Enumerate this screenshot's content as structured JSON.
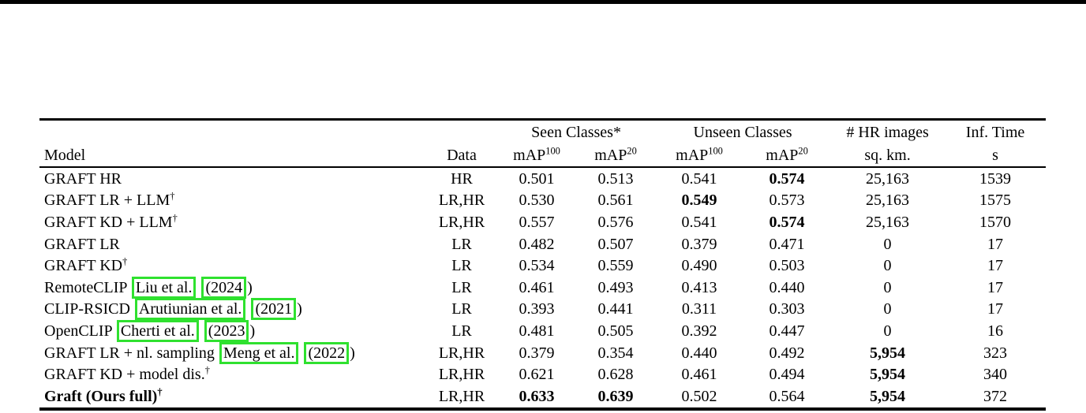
{
  "page": {
    "colors": {
      "citation_box_green": "#2fe12f",
      "rule_black": "#000000",
      "background": "#ffffff"
    }
  },
  "table": {
    "header": {
      "model": "Model",
      "data": "Data",
      "seen_group": "Seen Classes*",
      "unseen_group": "Unseen Classes",
      "hr_images_line1": "# HR images",
      "hr_images_line2": "sq. km.",
      "inf_time_line1": "Inf. Time",
      "inf_time_line2": "s",
      "map_base": "mAP",
      "map_sup_100": "100",
      "map_sup_20": "20"
    },
    "rows": [
      {
        "model_parts": [
          {
            "t": "text",
            "v": "GRAFT HR"
          }
        ],
        "bold_model": false,
        "cells": [
          "HR",
          "0.501",
          "0.513",
          "0.541",
          "0.574",
          "25,163",
          "1539"
        ],
        "bold_cells": [
          4
        ]
      },
      {
        "model_parts": [
          {
            "t": "text",
            "v": "GRAFT LR + LLM"
          },
          {
            "t": "sup",
            "v": "†"
          }
        ],
        "bold_model": false,
        "cells": [
          "LR,HR",
          "0.530",
          "0.561",
          "0.549",
          "0.573",
          "25,163",
          "1575"
        ],
        "bold_cells": [
          3
        ]
      },
      {
        "model_parts": [
          {
            "t": "text",
            "v": "GRAFT KD + LLM"
          },
          {
            "t": "sup",
            "v": "†"
          }
        ],
        "bold_model": false,
        "cells": [
          "LR,HR",
          "0.557",
          "0.576",
          "0.541",
          "0.574",
          "25,163",
          "1570"
        ],
        "bold_cells": [
          4
        ]
      },
      {
        "model_parts": [
          {
            "t": "text",
            "v": "GRAFT LR"
          }
        ],
        "bold_model": false,
        "cells": [
          "LR",
          "0.482",
          "0.507",
          "0.379",
          "0.471",
          "0",
          "17"
        ],
        "bold_cells": []
      },
      {
        "model_parts": [
          {
            "t": "text",
            "v": "GRAFT KD"
          },
          {
            "t": "sup",
            "v": "†"
          }
        ],
        "bold_model": false,
        "cells": [
          "LR",
          "0.534",
          "0.559",
          "0.490",
          "0.503",
          "0",
          "17"
        ],
        "bold_cells": []
      },
      {
        "model_parts": [
          {
            "t": "text",
            "v": "RemoteCLIP "
          },
          {
            "t": "box",
            "v": "Liu et al."
          },
          {
            "t": "text",
            "v": " "
          },
          {
            "t": "box",
            "v": "(2024"
          },
          {
            "t": "text",
            "v": ")"
          }
        ],
        "bold_model": false,
        "cells": [
          "LR",
          "0.461",
          "0.493",
          "0.413",
          "0.440",
          "0",
          "17"
        ],
        "bold_cells": []
      },
      {
        "model_parts": [
          {
            "t": "text",
            "v": "CLIP-RSICD "
          },
          {
            "t": "box",
            "v": "Arutiunian et al."
          },
          {
            "t": "text",
            "v": " "
          },
          {
            "t": "box",
            "v": "(2021"
          },
          {
            "t": "text",
            "v": ")"
          }
        ],
        "bold_model": false,
        "cells": [
          "LR",
          "0.393",
          "0.441",
          "0.311",
          "0.303",
          "0",
          "17"
        ],
        "bold_cells": []
      },
      {
        "model_parts": [
          {
            "t": "text",
            "v": "OpenCLIP "
          },
          {
            "t": "box",
            "v": "Cherti et al."
          },
          {
            "t": "text",
            "v": " "
          },
          {
            "t": "box",
            "v": "(2023"
          },
          {
            "t": "text",
            "v": ")"
          }
        ],
        "bold_model": false,
        "cells": [
          "LR",
          "0.481",
          "0.505",
          "0.392",
          "0.447",
          "0",
          "16"
        ],
        "bold_cells": []
      },
      {
        "model_parts": [
          {
            "t": "text",
            "v": "GRAFT LR + nl. sampling "
          },
          {
            "t": "box",
            "v": "Meng et al."
          },
          {
            "t": "text",
            "v": " "
          },
          {
            "t": "box",
            "v": "(2022"
          },
          {
            "t": "text",
            "v": ")"
          }
        ],
        "bold_model": false,
        "cells": [
          "LR,HR",
          "0.379",
          "0.354",
          "0.440",
          "0.492",
          "5,954",
          "323"
        ],
        "bold_cells": [
          5
        ]
      },
      {
        "model_parts": [
          {
            "t": "text",
            "v": "GRAFT KD + model dis."
          },
          {
            "t": "sup",
            "v": "†"
          }
        ],
        "bold_model": false,
        "cells": [
          "LR,HR",
          "0.621",
          "0.628",
          "0.461",
          "0.494",
          "5,954",
          "340"
        ],
        "bold_cells": [
          5
        ]
      },
      {
        "model_parts": [
          {
            "t": "text",
            "v": "Graft (Ours full)"
          },
          {
            "t": "sup",
            "v": "†"
          }
        ],
        "bold_model": true,
        "cells": [
          "LR,HR",
          "0.633",
          "0.639",
          "0.502",
          "0.564",
          "5,954",
          "372"
        ],
        "bold_cells": [
          1,
          2,
          5
        ]
      }
    ]
  }
}
